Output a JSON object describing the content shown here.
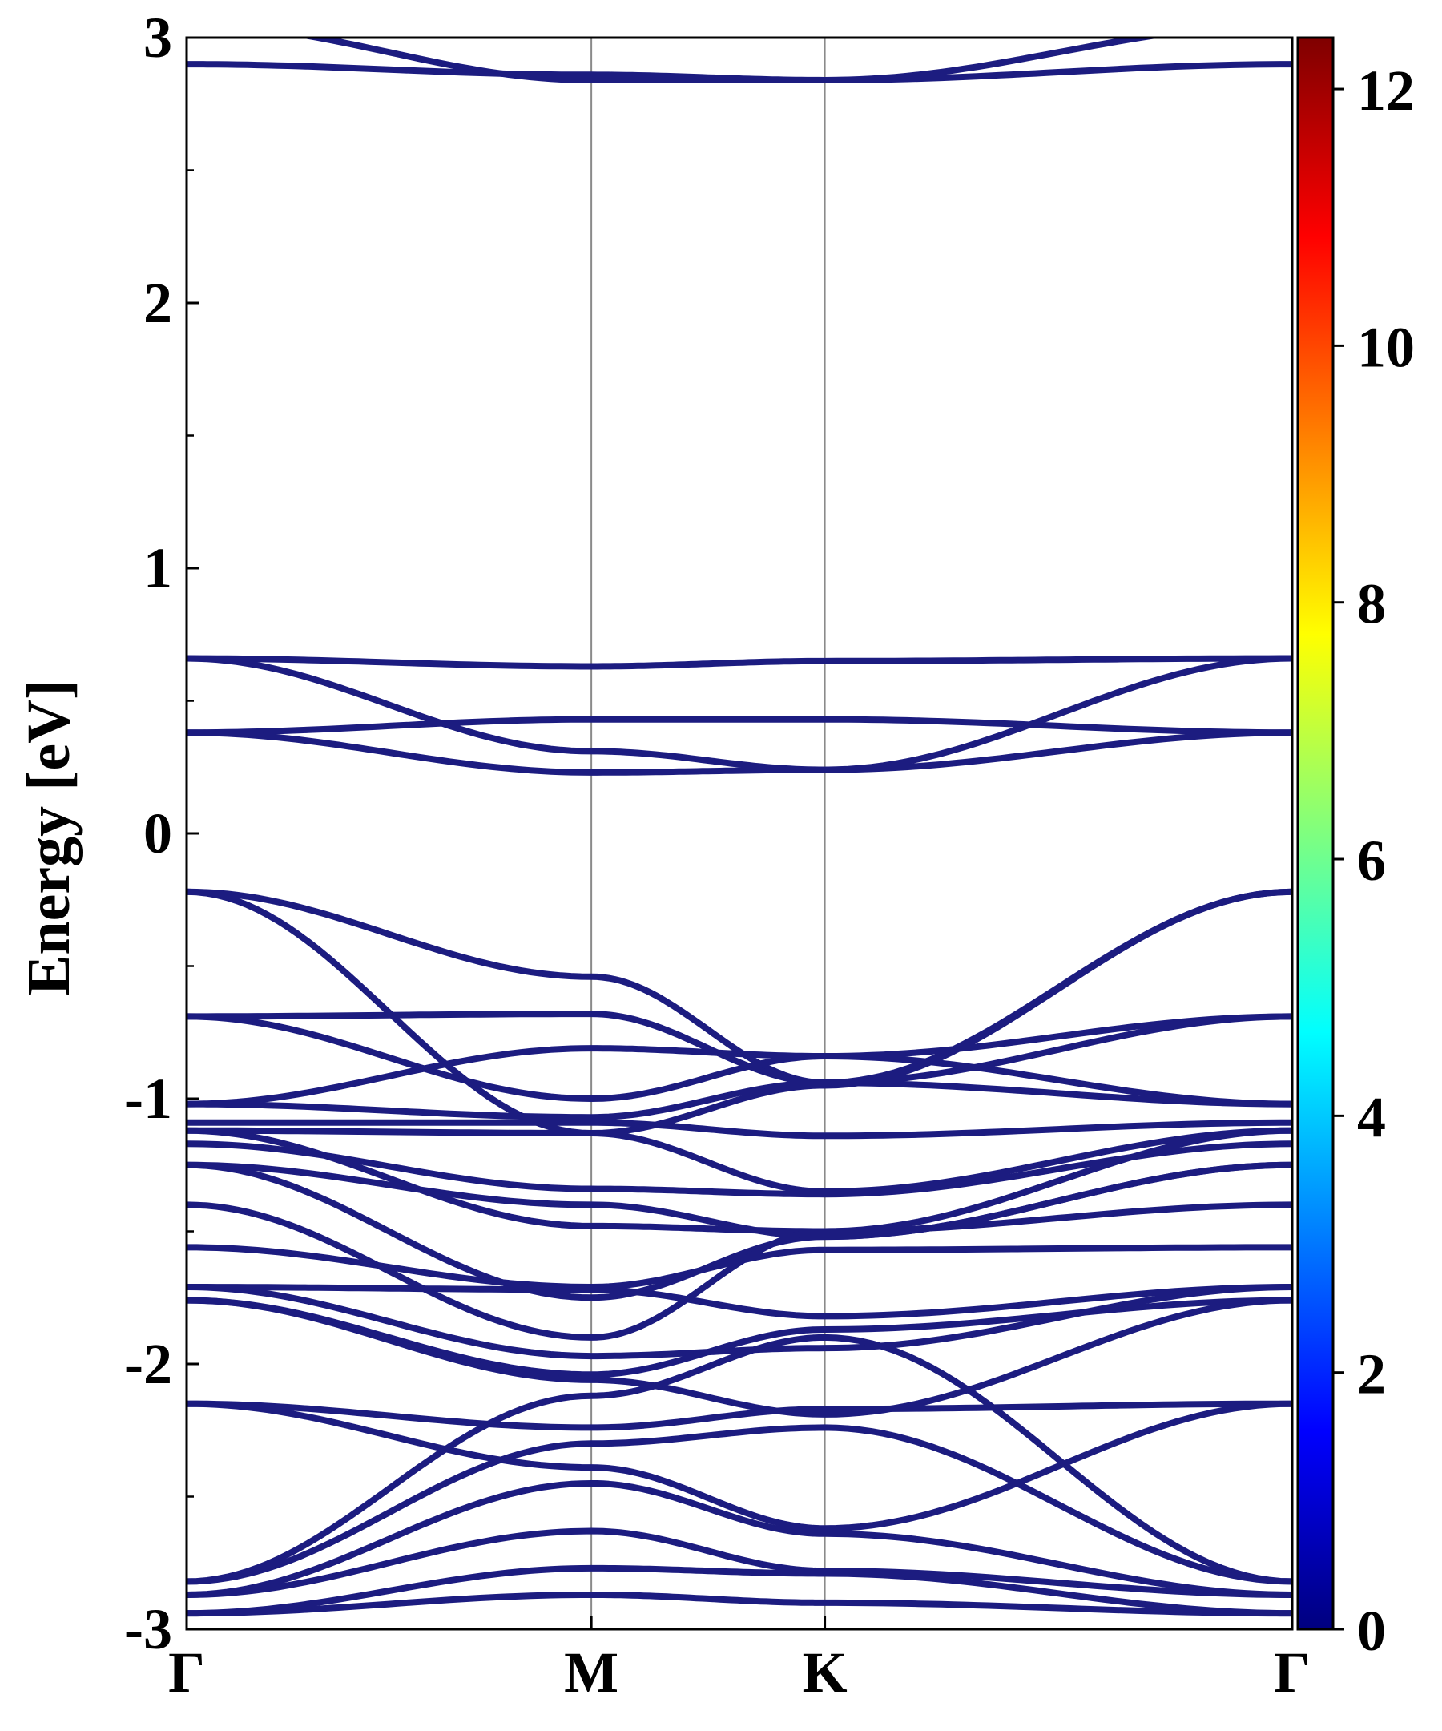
{
  "chart_data": {
    "type": "line",
    "ylabel": "Energy [eV]",
    "xlabel": "",
    "ylim": [
      -3,
      3
    ],
    "yticks": [
      {
        "value": 3,
        "label": "3"
      },
      {
        "value": 2,
        "label": "2"
      },
      {
        "value": 1,
        "label": "1"
      },
      {
        "value": 0,
        "label": "0"
      },
      {
        "value": -1,
        "label": "-1"
      },
      {
        "value": -2,
        "label": "-2"
      },
      {
        "value": -3,
        "label": "-3"
      }
    ],
    "kpath": [
      {
        "label": "Γ",
        "k": 0.0
      },
      {
        "label": "M",
        "k": 1.0
      },
      {
        "label": "K",
        "k": 1.577
      },
      {
        "label": "Γ",
        "k": 2.732
      }
    ],
    "grid": false,
    "line_color": "#1c1c80",
    "colorbar": {
      "range": [
        0,
        12.4
      ],
      "ticks": [
        {
          "value": 0,
          "label": "0"
        },
        {
          "value": 2,
          "label": "2"
        },
        {
          "value": 4,
          "label": "4"
        },
        {
          "value": 6,
          "label": "6"
        },
        {
          "value": 8,
          "label": "8"
        },
        {
          "value": 10,
          "label": "10"
        },
        {
          "value": 12,
          "label": "12"
        }
      ],
      "colormap": "jet"
    },
    "bands_note_points": "each band: energies at Γ, M, K, Γ",
    "bands": [
      [
        2.9,
        2.86,
        2.84,
        2.9
      ],
      [
        3.05,
        2.84,
        2.84,
        3.05
      ],
      [
        0.66,
        0.63,
        0.65,
        0.66
      ],
      [
        0.66,
        0.31,
        0.24,
        0.66
      ],
      [
        0.38,
        0.43,
        0.43,
        0.38
      ],
      [
        0.38,
        0.23,
        0.24,
        0.38
      ],
      [
        -0.22,
        -0.54,
        -0.94,
        -0.22
      ],
      [
        -0.22,
        -1.13,
        -0.95,
        -0.22
      ],
      [
        -0.69,
        -0.68,
        -0.94,
        -0.69
      ],
      [
        -0.69,
        -1.0,
        -0.84,
        -0.69
      ],
      [
        -1.02,
        -0.81,
        -0.84,
        -1.02
      ],
      [
        -1.02,
        -1.07,
        -0.94,
        -1.02
      ],
      [
        -1.09,
        -1.09,
        -1.14,
        -1.09
      ],
      [
        -1.12,
        -1.13,
        -1.35,
        -1.12
      ],
      [
        -1.12,
        -1.48,
        -1.5,
        -1.12
      ],
      [
        -1.17,
        -1.34,
        -1.36,
        -1.17
      ],
      [
        -1.25,
        -1.4,
        -1.52,
        -1.25
      ],
      [
        -1.25,
        -1.75,
        -1.52,
        -1.25
      ],
      [
        -1.4,
        -1.9,
        -1.5,
        -1.4
      ],
      [
        -1.56,
        -1.71,
        -1.57,
        -1.56
      ],
      [
        -1.71,
        -1.72,
        -1.82,
        -1.71
      ],
      [
        -1.71,
        -1.97,
        -1.94,
        -1.71
      ],
      [
        -1.76,
        -2.04,
        -1.87,
        -1.76
      ],
      [
        -1.76,
        -2.06,
        -2.19,
        -1.76
      ],
      [
        -2.15,
        -2.24,
        -2.17,
        -2.15
      ],
      [
        -2.15,
        -2.39,
        -2.62,
        -2.15
      ],
      [
        -2.82,
        -2.12,
        -1.9,
        -2.82
      ],
      [
        -2.82,
        -2.3,
        -2.24,
        -2.82
      ],
      [
        -2.87,
        -2.45,
        -2.64,
        -2.87
      ],
      [
        -2.87,
        -2.63,
        -2.78,
        -2.87
      ],
      [
        -2.94,
        -2.77,
        -2.79,
        -2.94
      ],
      [
        -2.94,
        -2.87,
        -2.9,
        -2.94
      ]
    ]
  }
}
